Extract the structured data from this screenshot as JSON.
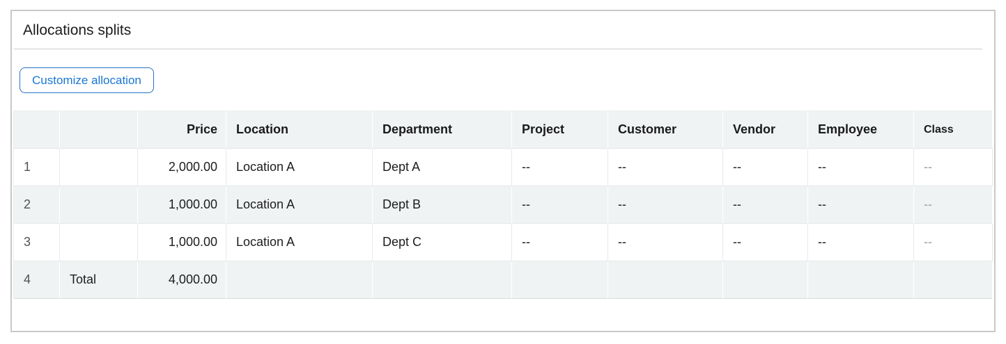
{
  "panel": {
    "title": "Allocations splits",
    "button_label": "Customize allocation"
  },
  "table": {
    "columns": [
      {
        "key": "num",
        "label": ""
      },
      {
        "key": "label",
        "label": ""
      },
      {
        "key": "price",
        "label": "Price",
        "align": "right"
      },
      {
        "key": "location",
        "label": "Location"
      },
      {
        "key": "department",
        "label": "Department"
      },
      {
        "key": "project",
        "label": "Project"
      },
      {
        "key": "customer",
        "label": "Customer"
      },
      {
        "key": "vendor",
        "label": "Vendor"
      },
      {
        "key": "employee",
        "label": "Employee"
      },
      {
        "key": "class",
        "label": "Class"
      }
    ],
    "rows": [
      {
        "num": "1",
        "label": "",
        "price": "2,000.00",
        "location": "Location A",
        "department": "Dept A",
        "project": "--",
        "customer": "--",
        "vendor": "--",
        "employee": "--",
        "class": "--"
      },
      {
        "num": "2",
        "label": "",
        "price": "1,000.00",
        "location": "Location A",
        "department": "Dept B",
        "project": "--",
        "customer": "--",
        "vendor": "--",
        "employee": "--",
        "class": "--"
      },
      {
        "num": "3",
        "label": "",
        "price": "1,000.00",
        "location": "Location A",
        "department": "Dept C",
        "project": "--",
        "customer": "--",
        "vendor": "--",
        "employee": "--",
        "class": "--"
      },
      {
        "num": "4",
        "label": "Total",
        "price": "4,000.00",
        "location": "",
        "department": "",
        "project": "",
        "customer": "",
        "vendor": "",
        "employee": "",
        "class": "",
        "type": "total"
      }
    ]
  },
  "colors": {
    "accent_blue": "#1976d2",
    "header_background": "#f0f3f4",
    "stripe_background": "#f0f3f4",
    "panel_border": "#c8c8c8"
  }
}
